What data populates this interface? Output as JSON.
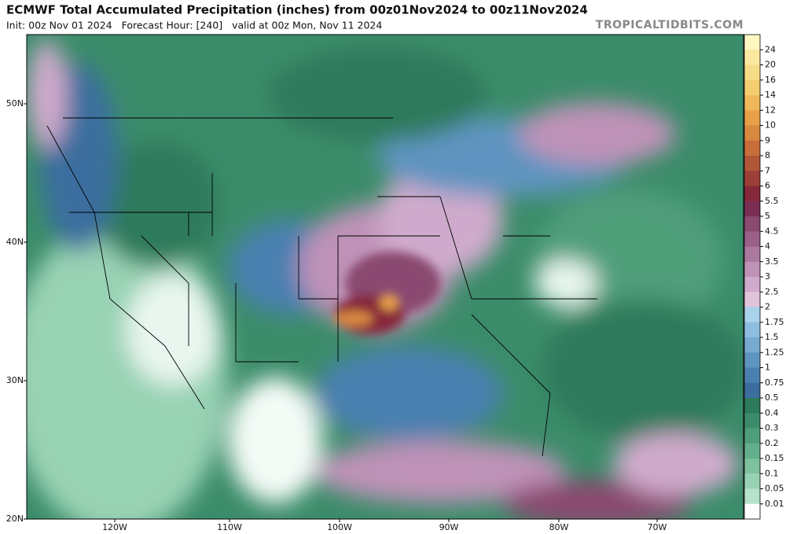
{
  "header": {
    "title": "ECMWF Total Accumulated Precipitation (inches) from 00z01Nov2024 to 00z11Nov2024",
    "subtitle": "Init: 00z Nov 01 2024   Forecast Hour: [240]   valid at 00z Mon, Nov 11 2024",
    "brand": "TROPICALTIDBITS.COM"
  },
  "map": {
    "lat_labels": [
      "50N",
      "40N",
      "30N",
      "20N"
    ],
    "lon_labels": [
      "120W",
      "110W",
      "100W",
      "90W",
      "80W",
      "70W"
    ]
  },
  "legend": {
    "levels": [
      24,
      20,
      16,
      14,
      12,
      10,
      9,
      8,
      7,
      6,
      5.5,
      5,
      4.5,
      4,
      3.5,
      3,
      2.5,
      2,
      1.75,
      1.5,
      1.25,
      1,
      0.75,
      0.5,
      0.4,
      0.3,
      0.2,
      0.15,
      0.1,
      0.05,
      0.01
    ],
    "colors": [
      "#fff6c0",
      "#fbe9a0",
      "#f7dc88",
      "#f3cd70",
      "#efb95a",
      "#e8a048",
      "#d98840",
      "#c86e3a",
      "#b25638",
      "#9b3f38",
      "#86283a",
      "#7a2d55",
      "#8a4a70",
      "#9a6088",
      "#ab78a0",
      "#bf92b8",
      "#d0aacc",
      "#e0c4dc",
      "#a9d2ec",
      "#8ebedf",
      "#76aad0",
      "#5e94c0",
      "#4a80b0",
      "#3b6e9e",
      "#2e7a5c",
      "#3b8c6a",
      "#4f9e7a",
      "#65b08c",
      "#7dc19f",
      "#98d2b4",
      "#b6e2cb",
      "#ffffff"
    ]
  }
}
